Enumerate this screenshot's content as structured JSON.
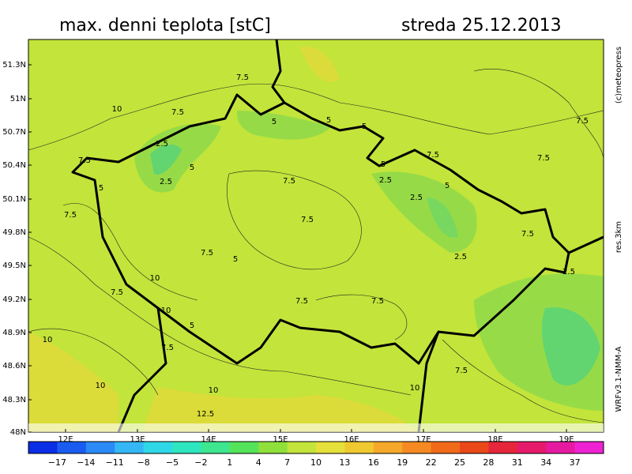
{
  "header": {
    "title": "max. denni teplota [stC]",
    "date": "streda 25.12.2013"
  },
  "map": {
    "lat_labels": [
      "51.3N",
      "51N",
      "50.7N",
      "50.4N",
      "50.1N",
      "49.8N",
      "49.5N",
      "49.2N",
      "48.9N",
      "48.6N",
      "48.3N",
      "48N"
    ],
    "lon_labels": [
      "12E",
      "13E",
      "14E",
      "15E",
      "16E",
      "17E",
      "18E",
      "19E"
    ],
    "contour_labels": [
      "7.5",
      "10",
      "7.5",
      "5",
      "5",
      "2.5",
      "7.5",
      "5",
      "2.5",
      "7.5",
      "5",
      "7.5",
      "7.5",
      "2.5",
      "7.5",
      "5",
      "7.5",
      "5",
      "5",
      "2.5",
      "7.5",
      "5",
      "2.5",
      "7.5",
      "10",
      "7.5",
      "10",
      "7.5",
      "10",
      "12.5",
      "7.5",
      "5",
      "2.5",
      "10",
      "7.5",
      "7.5",
      "10",
      "10",
      "7.5"
    ]
  },
  "side_texts": {
    "copyright": "(c)meteopress",
    "resolution": "res.3km",
    "model": "WRFv3.1-NMM-A"
  },
  "colorbar": {
    "labels": [
      "−17",
      "−14",
      "−11",
      "−8",
      "−5",
      "−2",
      "1",
      "4",
      "7",
      "10",
      "13",
      "16",
      "19",
      "22",
      "25",
      "28",
      "31",
      "34",
      "37"
    ]
  }
}
